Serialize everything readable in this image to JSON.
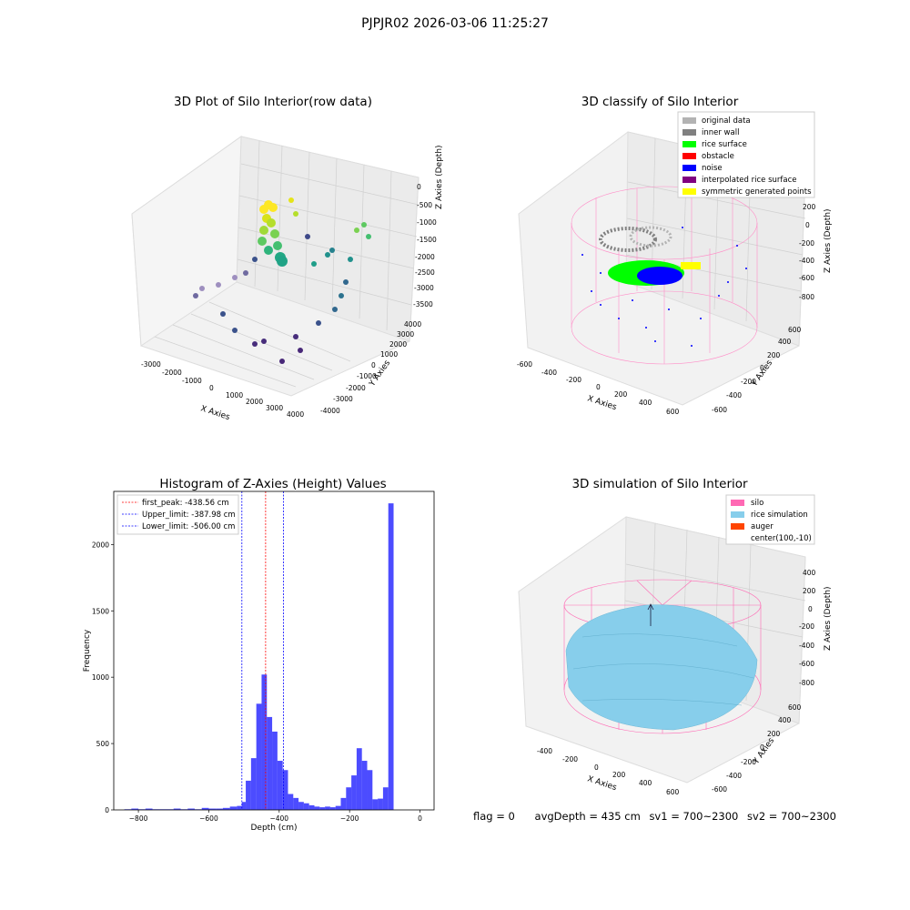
{
  "suptitle": "PJPJR02 2026-03-06 11:25:27",
  "footer": {
    "flag": "flag = 0",
    "avgdepth": "avgDepth = 435 cm",
    "sv1": "sv1 = 700~2300",
    "sv2": "sv2 = 700~2300"
  },
  "panels": {
    "raw": {
      "title": "3D Plot of Silo Interior(row data)",
      "xlabel": "X Axies",
      "ylabel": "Y Axies",
      "zlabel": "Z Axies (Depth)",
      "xticks": [
        "-3000",
        "-2000",
        "-1000",
        "0",
        "1000",
        "2000",
        "3000",
        "4000"
      ],
      "yticks": [
        "-4000",
        "-3000",
        "-2000",
        "-1000",
        "0",
        "1000",
        "2000",
        "3000",
        "4000"
      ],
      "zticks": [
        "0",
        "-500",
        "-1000",
        "-1500",
        "-2000",
        "-2500",
        "-3000",
        "-3500"
      ]
    },
    "classify": {
      "title": "3D classify of Silo Interior",
      "xlabel": "X Axies",
      "ylabel": "Y Axies",
      "zlabel": "Z Axies (Depth)",
      "xticks": [
        "-600",
        "-400",
        "-200",
        "0",
        "200",
        "400",
        "600"
      ],
      "yticks": [
        "-600",
        "-400",
        "-200",
        "0",
        "200",
        "400",
        "600"
      ],
      "zticks": [
        "200",
        "0",
        "-200",
        "-400",
        "-600",
        "-800"
      ],
      "legend": [
        {
          "label": "original data",
          "color": "#b3b3b3"
        },
        {
          "label": "inner wall",
          "color": "#808080"
        },
        {
          "label": "rice surface",
          "color": "#00ff00"
        },
        {
          "label": "obstacle",
          "color": "#ff0000"
        },
        {
          "label": "noise",
          "color": "#0000ff"
        },
        {
          "label": "interpolated rice surface",
          "color": "#800080"
        },
        {
          "label": "symmetric generated points",
          "color": "#ffff00"
        }
      ]
    },
    "simulation": {
      "title": "3D simulation of Silo Interior",
      "xlabel": "X Axies",
      "ylabel": "Y Axies",
      "zlabel": "Z Axies (Depth)",
      "xticks": [
        "-400",
        "-200",
        "0",
        "200",
        "400",
        "600"
      ],
      "yticks": [
        "-600",
        "-400",
        "-200",
        "0",
        "200",
        "400",
        "600"
      ],
      "zticks": [
        "400",
        "200",
        "0",
        "-200",
        "-400",
        "-600",
        "-800"
      ],
      "legend": [
        {
          "label": "silo",
          "color": "#ff69b4"
        },
        {
          "label": "rice simulation",
          "color": "#87ceeb"
        },
        {
          "label": "auger",
          "color": "#ff4500"
        },
        {
          "label": "center(100,-10)",
          "color": ""
        }
      ]
    }
  },
  "chart_data": {
    "type": "bar",
    "title": "Histogram of Z-Axies (Height) Values",
    "xlabel": "Depth (cm)",
    "ylabel": "Frequency",
    "xlim": [
      -870,
      40
    ],
    "ylim": [
      0,
      2400
    ],
    "xticks": [
      -800,
      -600,
      -400,
      -200,
      0
    ],
    "yticks": [
      0,
      500,
      1000,
      1500,
      2000
    ],
    "bin_edges": [
      -840,
      -820,
      -800,
      -780,
      -760,
      -740,
      -720,
      -700,
      -680,
      -660,
      -640,
      -620,
      -600,
      -580,
      -560,
      -540,
      -520,
      -506,
      -495,
      -480,
      -465,
      -450,
      -435,
      -420,
      -405,
      -390,
      -375,
      -360,
      -345,
      -330,
      -315,
      -300,
      -285,
      -270,
      -255,
      -240,
      -225,
      -210,
      -195,
      -180,
      -165,
      -150,
      -135,
      -120,
      -105,
      -90,
      -75,
      -60,
      -45,
      -30,
      -15,
      0
    ],
    "counts": [
      5,
      10,
      5,
      10,
      5,
      5,
      5,
      10,
      5,
      10,
      5,
      15,
      10,
      10,
      15,
      25,
      30,
      60,
      220,
      390,
      800,
      1020,
      700,
      590,
      370,
      300,
      120,
      90,
      60,
      50,
      35,
      25,
      20,
      25,
      20,
      30,
      90,
      170,
      260,
      465,
      370,
      300,
      80,
      85,
      170,
      2310,
      0,
      0,
      0,
      0,
      0
    ],
    "bar_color": "#0000ff",
    "vlines": [
      {
        "label": "first_peak: -438.56 cm",
        "x": -438.56,
        "color": "#ff0000"
      },
      {
        "label": "Upper_limit: -387.98 cm",
        "x": -387.98,
        "color": "#0000ff"
      },
      {
        "label": "Lower_limit: -506.00 cm",
        "x": -506.0,
        "color": "#0000ff"
      }
    ],
    "legend_position": "top-left",
    "grid": false
  }
}
